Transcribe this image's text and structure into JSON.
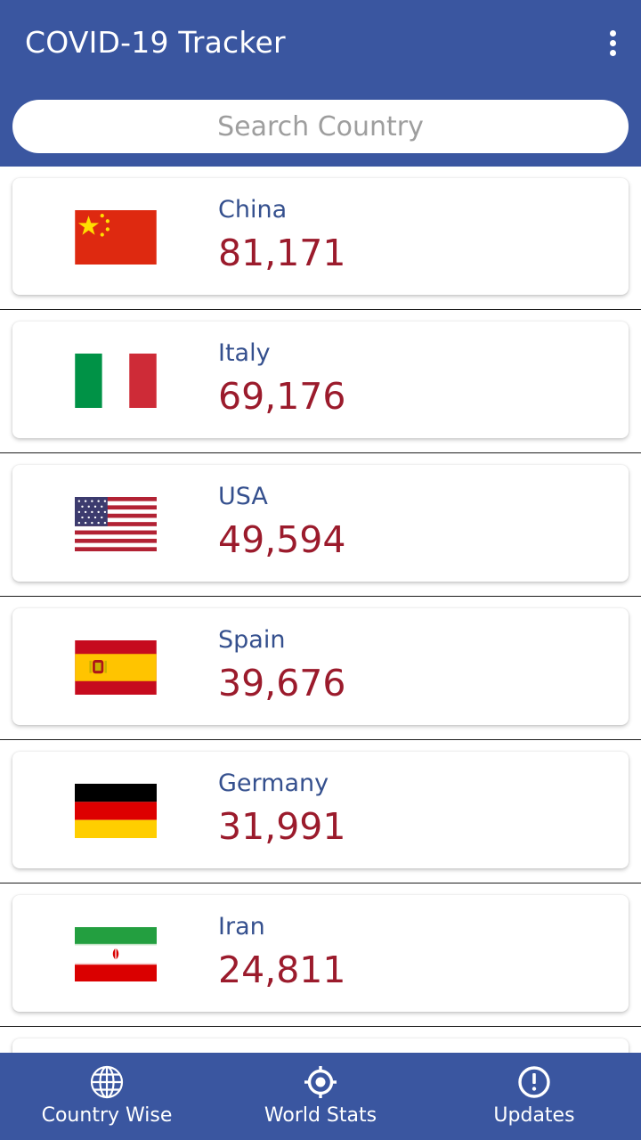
{
  "appbar": {
    "title": "COVID-19 Tracker"
  },
  "search": {
    "placeholder": "Search Country"
  },
  "countries": [
    {
      "name": "China",
      "cases": "81,171"
    },
    {
      "name": "Italy",
      "cases": "69,176"
    },
    {
      "name": "USA",
      "cases": "49,594"
    },
    {
      "name": "Spain",
      "cases": "39,676"
    },
    {
      "name": "Germany",
      "cases": "31,991"
    },
    {
      "name": "Iran",
      "cases": "24,811"
    }
  ],
  "bottom_nav": [
    {
      "label": "Country Wise",
      "icon": "globe-icon"
    },
    {
      "label": "World Stats",
      "icon": "crosshair-icon"
    },
    {
      "label": "Updates",
      "icon": "alert-circle-icon"
    }
  ],
  "colors": {
    "primary": "#3a56a0",
    "country_name": "#35508e",
    "case_count": "#9b1b2c"
  }
}
